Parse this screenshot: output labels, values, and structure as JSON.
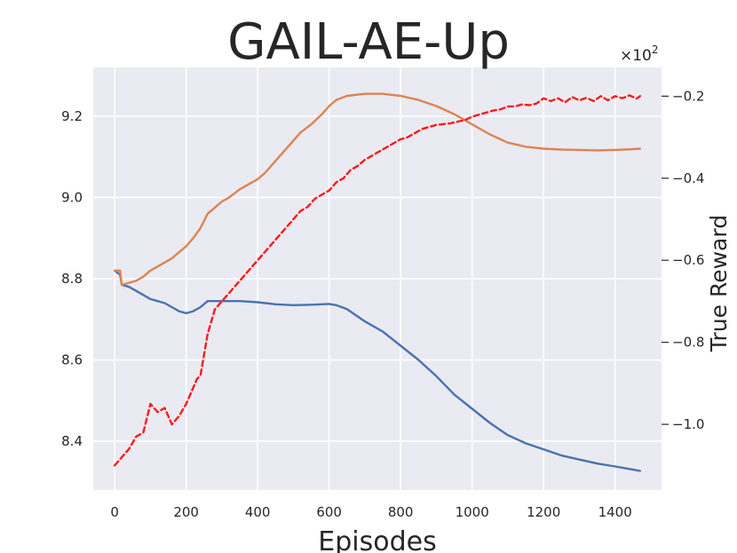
{
  "chart_data": {
    "type": "line",
    "title": "GAIL-AE-Up",
    "xlabel": "Episodes",
    "ylabel": "",
    "y2label": "True Reward",
    "y2_multiplier_label": "×10",
    "y2_multiplier_exp": "2",
    "grid": true,
    "xlim": [
      -60,
      1530
    ],
    "ylim": [
      8.28,
      9.32
    ],
    "y2lim": [
      -1.16,
      -0.13
    ],
    "xticks": [
      0,
      200,
      400,
      600,
      800,
      1000,
      1200,
      1400
    ],
    "xtick_labels": [
      "0",
      "200",
      "400",
      "600",
      "800",
      "1000",
      "1200",
      "1400"
    ],
    "yticks": [
      8.4,
      8.6,
      8.8,
      9.0,
      9.2
    ],
    "ytick_labels": [
      "8.4",
      "8.6",
      "8.8",
      "9.0",
      "9.2"
    ],
    "y2ticks": [
      -1.0,
      -0.8,
      -0.6,
      -0.4,
      -0.2
    ],
    "y2tick_labels": [
      "−1.0",
      "−0.8",
      "−0.6",
      "−0.4",
      "−0.2"
    ],
    "series": [
      {
        "color": "#4c72b0",
        "axis": "left",
        "dash": "solid",
        "x": [
          0,
          15,
          20,
          40,
          60,
          80,
          100,
          120,
          140,
          160,
          180,
          200,
          220,
          240,
          260,
          300,
          350,
          400,
          450,
          500,
          550,
          600,
          620,
          650,
          700,
          750,
          800,
          850,
          900,
          950,
          1000,
          1050,
          1100,
          1150,
          1200,
          1250,
          1300,
          1350,
          1400,
          1450,
          1470
        ],
        "y": [
          8.82,
          8.81,
          8.785,
          8.78,
          8.77,
          8.76,
          8.75,
          8.745,
          8.74,
          8.73,
          8.72,
          8.715,
          8.72,
          8.73,
          8.745,
          8.745,
          8.745,
          8.742,
          8.737,
          8.735,
          8.736,
          8.738,
          8.735,
          8.725,
          8.695,
          8.67,
          8.635,
          8.6,
          8.56,
          8.515,
          8.48,
          8.445,
          8.415,
          8.395,
          8.38,
          8.365,
          8.355,
          8.345,
          8.338,
          8.33,
          8.327
        ]
      },
      {
        "color": "#dd8452",
        "axis": "left",
        "dash": "solid",
        "x": [
          0,
          15,
          20,
          40,
          60,
          80,
          100,
          120,
          140,
          160,
          180,
          200,
          220,
          240,
          260,
          280,
          300,
          320,
          350,
          380,
          400,
          420,
          440,
          460,
          500,
          520,
          550,
          580,
          600,
          620,
          650,
          700,
          750,
          800,
          850,
          900,
          950,
          1000,
          1050,
          1100,
          1150,
          1200,
          1250,
          1300,
          1350,
          1400,
          1450,
          1470
        ],
        "y": [
          8.82,
          8.82,
          8.785,
          8.79,
          8.795,
          8.805,
          8.82,
          8.83,
          8.84,
          8.85,
          8.865,
          8.88,
          8.9,
          8.925,
          8.96,
          8.975,
          8.99,
          9.0,
          9.02,
          9.035,
          9.045,
          9.06,
          9.08,
          9.1,
          9.14,
          9.16,
          9.18,
          9.205,
          9.225,
          9.24,
          9.25,
          9.255,
          9.255,
          9.25,
          9.24,
          9.225,
          9.205,
          9.18,
          9.155,
          9.135,
          9.125,
          9.12,
          9.118,
          9.117,
          9.116,
          9.117,
          9.119,
          9.12
        ]
      },
      {
        "color": "#ff1a1a",
        "axis": "right",
        "dash": "dashed",
        "x": [
          0,
          10,
          20,
          40,
          60,
          80,
          100,
          120,
          140,
          160,
          180,
          200,
          210,
          220,
          230,
          240,
          260,
          280,
          300,
          320,
          340,
          360,
          380,
          400,
          420,
          440,
          460,
          480,
          500,
          520,
          540,
          560,
          580,
          600,
          620,
          640,
          660,
          680,
          700,
          720,
          740,
          760,
          780,
          800,
          820,
          840,
          860,
          880,
          900,
          920,
          940,
          960,
          980,
          1000,
          1020,
          1040,
          1060,
          1080,
          1100,
          1120,
          1140,
          1160,
          1180,
          1200,
          1220,
          1240,
          1260,
          1280,
          1300,
          1320,
          1340,
          1360,
          1380,
          1400,
          1420,
          1440,
          1460,
          1470
        ],
        "y": [
          -1.1,
          -1.09,
          -1.08,
          -1.06,
          -1.03,
          -1.02,
          -0.95,
          -0.97,
          -0.96,
          -1.0,
          -0.98,
          -0.95,
          -0.93,
          -0.91,
          -0.89,
          -0.88,
          -0.78,
          -0.72,
          -0.7,
          -0.68,
          -0.66,
          -0.64,
          -0.62,
          -0.6,
          -0.58,
          -0.56,
          -0.54,
          -0.52,
          -0.5,
          -0.48,
          -0.47,
          -0.45,
          -0.44,
          -0.43,
          -0.41,
          -0.4,
          -0.38,
          -0.37,
          -0.355,
          -0.345,
          -0.335,
          -0.325,
          -0.315,
          -0.305,
          -0.3,
          -0.29,
          -0.28,
          -0.275,
          -0.27,
          -0.268,
          -0.266,
          -0.262,
          -0.258,
          -0.25,
          -0.245,
          -0.24,
          -0.235,
          -0.232,
          -0.225,
          -0.225,
          -0.22,
          -0.222,
          -0.218,
          -0.205,
          -0.212,
          -0.205,
          -0.215,
          -0.202,
          -0.21,
          -0.204,
          -0.212,
          -0.2,
          -0.21,
          -0.2,
          -0.205,
          -0.198,
          -0.206,
          -0.2
        ]
      }
    ]
  }
}
